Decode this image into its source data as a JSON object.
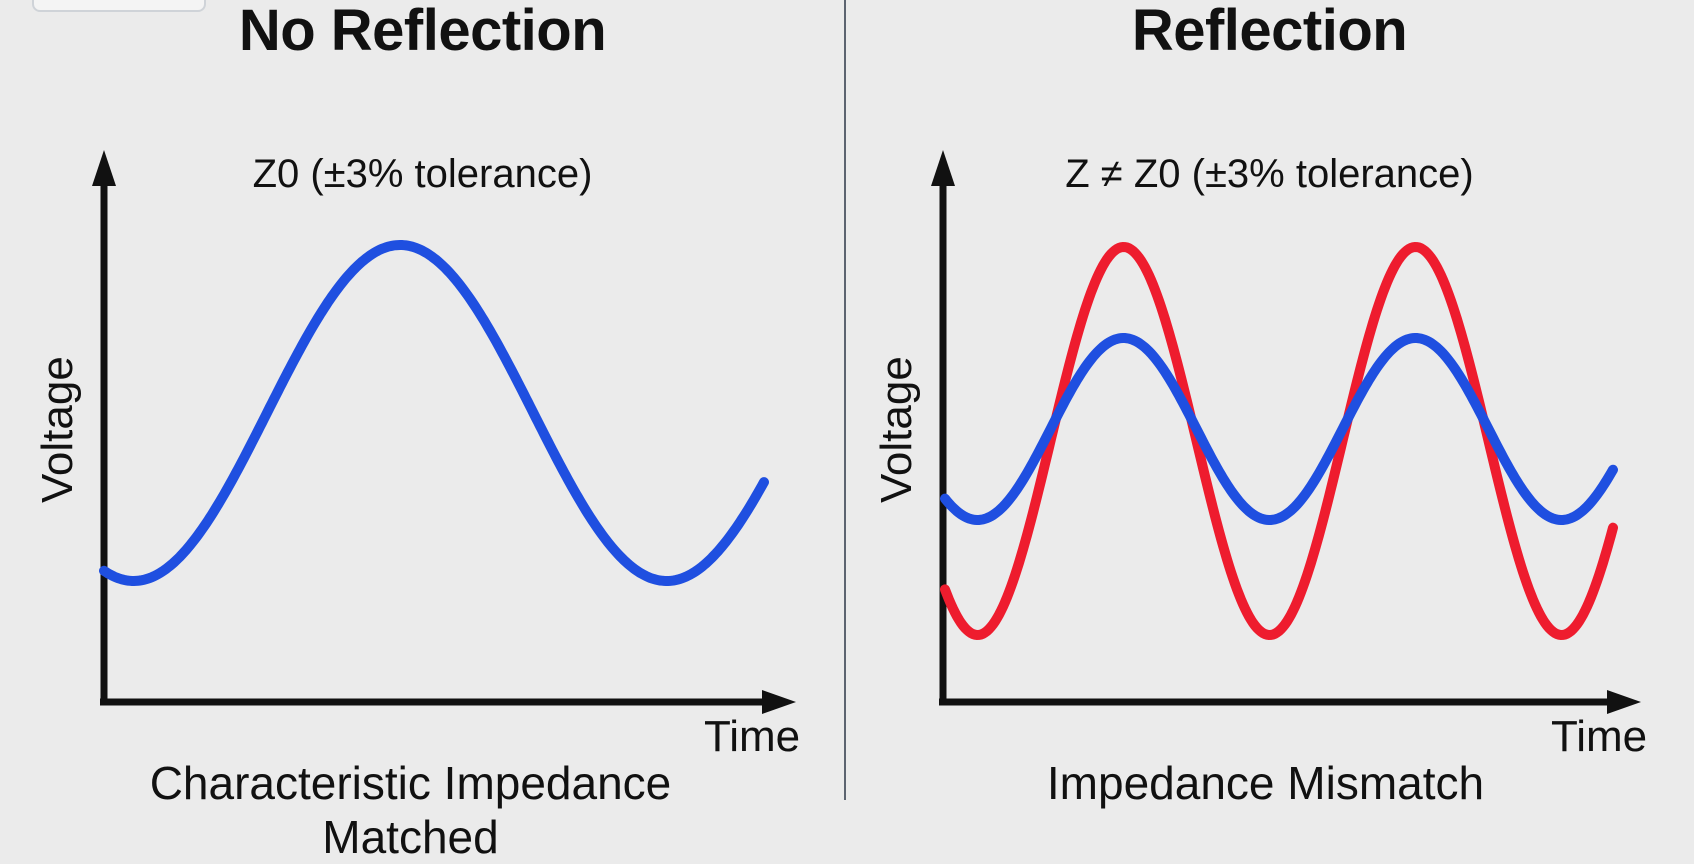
{
  "colors": {
    "background": "#ebebeb",
    "axis": "#111111",
    "incident_wave": "#1f4fe0",
    "reflected_wave": "#ee1c2e",
    "divider": "#5c6470"
  },
  "left_panel": {
    "title": "No Reflection",
    "subtitle": "Z0 (±3% tolerance)",
    "y_axis_label": "Voltage",
    "x_axis_label": "Time",
    "caption_line1": "Characteristic Impedance",
    "caption_line2": "Matched"
  },
  "right_panel": {
    "title": "Reflection",
    "subtitle": "Z ≠ Z0 (±3% tolerance)",
    "y_axis_label": "Voltage",
    "x_axis_label": "Time",
    "caption": "Impedance Mismatch"
  }
}
